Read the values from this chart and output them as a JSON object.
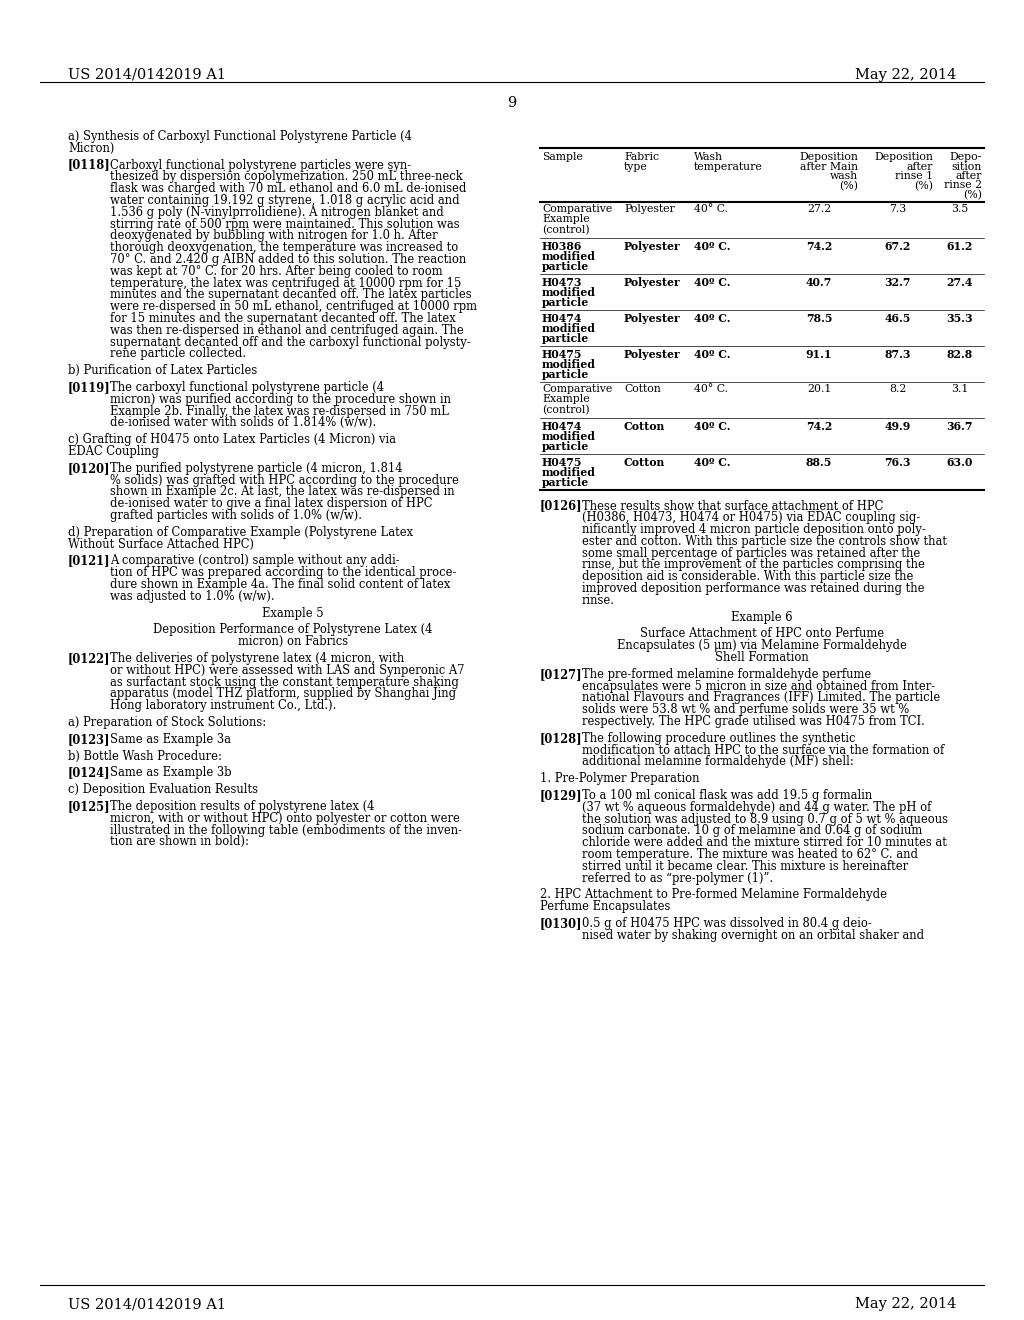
{
  "header_left": "US 2014/0142019 A1",
  "header_right": "May 22, 2014",
  "page_number": "9",
  "bg_color": "#ffffff",
  "left_column_text": [
    {
      "style": "normal",
      "text": "a) Synthesis of Carboxyl Functional Polystyrene Particle (4\nMicron)"
    },
    {
      "style": "paragraph",
      "tag": "[0118]",
      "text": "Carboxyl functional polystyrene particles were syn-\nthesized by dispersion copolymerization. 250 mL three-neck\nflask was charged with 70 mL ethanol and 6.0 mL de-ionised\nwater containing 19.192 g styrene, 1.018 g acrylic acid and\n1.536 g poly (N-vinylprrolidiene). A nitrogen blanket and\nstirring rate of 500 rpm were maintained. This solution was\ndeoxygenated by bubbling with nitrogen for 1.0 h. After\nthorough deoxygenation, the temperature was increased to\n70° C. and 2.420 g AIBN added to this solution. The reaction\nwas kept at 70° C. for 20 hrs. After being cooled to room\ntemperature, the latex was centrifuged at 10000 rpm for 15\nminutes and the supernatant decanted off. The latex particles\nwere re-dispersed in 50 mL ethanol, centrifuged at 10000 rpm\nfor 15 minutes and the supernatant decanted off. The latex\nwas then re-dispersed in ethanol and centrifuged again. The\nsupernatant decanted off and the carboxyl functional polysty-\nrene particle collected."
    },
    {
      "style": "normal",
      "text": "b) Purification of Latex Particles"
    },
    {
      "style": "paragraph",
      "tag": "[0119]",
      "text": "The carboxyl functional polystyrene particle (4\nmicron) was purified according to the procedure shown in\nExample 2b. Finally, the latex was re-dispersed in 750 mL\nde-ionised water with solids of 1.814% (w/w)."
    },
    {
      "style": "normal",
      "text": "c) Grafting of H0475 onto Latex Particles (4 Micron) via\nEDAC Coupling"
    },
    {
      "style": "paragraph",
      "tag": "[0120]",
      "text": "The purified polystyrene particle (4 micron, 1.814\n% solids) was grafted with HPC according to the procedure\nshown in Example 2c. At last, the latex was re-dispersed in\nde-ionised water to give a final latex dispersion of HPC\ngrafted particles with solids of 1.0% (w/w)."
    },
    {
      "style": "normal",
      "text": "d) Preparation of Comparative Example (Polystyrene Latex\nWithout Surface Attached HPC)"
    },
    {
      "style": "paragraph",
      "tag": "[0121]",
      "text": "A comparative (control) sample without any addi-\ntion of HPC was prepared according to the identical proce-\ndure shown in Example 4a. The final solid content of latex\nwas adjusted to 1.0% (w/w)."
    },
    {
      "style": "center",
      "text": "Example 5"
    },
    {
      "style": "center",
      "text": "Deposition Performance of Polystyrene Latex (4\nmicron) on Fabrics"
    },
    {
      "style": "paragraph",
      "tag": "[0122]",
      "text": "The deliveries of polystyrene latex (4 micron, with\nor without HPC) were assessed with LAS and Synperonic A7\nas surfactant stock using the constant temperature shaking\napparatus (model THZ platform, supplied by Shanghai Jing\nHong laboratory instrument Co., Ltd.)."
    },
    {
      "style": "normal",
      "text": "a) Preparation of Stock Solutions:"
    },
    {
      "style": "paragraph",
      "tag": "[0123]",
      "text": "Same as Example 3a"
    },
    {
      "style": "normal",
      "text": "b) Bottle Wash Procedure:"
    },
    {
      "style": "paragraph",
      "tag": "[0124]",
      "text": "Same as Example 3b"
    },
    {
      "style": "normal",
      "text": "c) Deposition Evaluation Results"
    },
    {
      "style": "paragraph",
      "tag": "[0125]",
      "text": "The deposition results of polystyrene latex (4\nmicron, with or without HPC) onto polyester or cotton were\nillustrated in the following table (embodiments of the inven-\ntion are shown in bold):"
    }
  ],
  "right_column_text": [
    {
      "style": "paragraph",
      "tag": "[0126]",
      "text": "These results show that surface attachment of HPC\n(H0386, H0473, H0474 or H0475) via EDAC coupling sig-\nnificantly improved 4 micron particle deposition onto poly-\nester and cotton. With this particle size the controls show that\nsome small percentage of particles was retained after the\nrinse, but the improvement of the particles comprising the\ndeposition aid is considerable. With this particle size the\nimproved deposition performance was retained during the\nrinse."
    },
    {
      "style": "center",
      "text": "Example 6"
    },
    {
      "style": "center",
      "text": "Surface Attachment of HPC onto Perfume\nEncapsulates (5 μm) via Melamine Formaldehyde\nShell Formation"
    },
    {
      "style": "paragraph",
      "tag": "[0127]",
      "text": "The pre-formed melamine formaldehyde perfume\nencapsulates were 5 micron in size and obtained from Inter-\nnational Flavours and Fragrances (IFF) Limited. The particle\nsolids were 53.8 wt % and perfume solids were 35 wt %\nrespectively. The HPC grade utilised was H0475 from TCI."
    },
    {
      "style": "paragraph",
      "tag": "[0128]",
      "text": "The following procedure outlines the synthetic\nmodification to attach HPC to the surface via the formation of\nadditional melamine formaldehyde (MF) shell:"
    },
    {
      "style": "normal",
      "text": "1. Pre-Polymer Preparation"
    },
    {
      "style": "paragraph",
      "tag": "[0129]",
      "text": "To a 100 ml conical flask was add 19.5 g formalin\n(37 wt % aqueous formaldehyde) and 44 g water. The pH of\nthe solution was adjusted to 8.9 using 0.7 g of 5 wt % aqueous\nsodium carbonate. 10 g of melamine and 0.64 g of sodium\nchloride were added and the mixture stirred for 10 minutes at\nroom temperature. The mixture was heated to 62° C. and\nstirred until it became clear. This mixture is hereinafter\nreferred to as “pre-polymer (1)”."
    },
    {
      "style": "normal",
      "text": "2. HPC Attachment to Pre-formed Melamine Formaldehyde\nPerfume Encapsulates"
    },
    {
      "style": "paragraph",
      "tag": "[0130]",
      "text": "0.5 g of H0475 HPC was dissolved in 80.4 g deio-\nnised water by shaking overnight on an orbital shaker and"
    }
  ],
  "table": {
    "header_texts": [
      [
        "Sample"
      ],
      [
        "Fabric",
        "type"
      ],
      [
        "Wash",
        "temperature"
      ],
      [
        "Deposition",
        "after Main",
        "wash",
        "(%)"
      ],
      [
        "Deposition",
        "after",
        "rinse 1",
        "(%)"
      ],
      [
        "Depo-",
        "sition",
        "after",
        "rinse 2",
        "(%)"
      ]
    ],
    "rows": [
      {
        "sample": [
          "Comparative",
          "Example",
          "(control)"
        ],
        "fabric": "Polyester",
        "temp": "40° C.",
        "d1": "27.2",
        "d2": "7.3",
        "d3": "3.5",
        "bold": false
      },
      {
        "sample": [
          "H0386",
          "modified",
          "particle"
        ],
        "fabric": "Polyester",
        "temp": "40º C.",
        "d1": "74.2",
        "d2": "67.2",
        "d3": "61.2",
        "bold": true
      },
      {
        "sample": [
          "H0473",
          "modified",
          "particle"
        ],
        "fabric": "Polyester",
        "temp": "40º C.",
        "d1": "40.7",
        "d2": "32.7",
        "d3": "27.4",
        "bold": true
      },
      {
        "sample": [
          "H0474",
          "modified",
          "particle"
        ],
        "fabric": "Polyester",
        "temp": "40º C.",
        "d1": "78.5",
        "d2": "46.5",
        "d3": "35.3",
        "bold": true
      },
      {
        "sample": [
          "H0475",
          "modified",
          "particle"
        ],
        "fabric": "Polyester",
        "temp": "40º C.",
        "d1": "91.1",
        "d2": "87.3",
        "d3": "82.8",
        "bold": true
      },
      {
        "sample": [
          "Comparative",
          "Example",
          "(control)"
        ],
        "fabric": "Cotton",
        "temp": "40° C.",
        "d1": "20.1",
        "d2": "8.2",
        "d3": "3.1",
        "bold": false
      },
      {
        "sample": [
          "H0474",
          "modified",
          "particle"
        ],
        "fabric": "Cotton",
        "temp": "40º C.",
        "d1": "74.2",
        "d2": "49.9",
        "d3": "36.7",
        "bold": true
      },
      {
        "sample": [
          "H0475",
          "modified",
          "particle"
        ],
        "fabric": "Cotton",
        "temp": "40º C.",
        "d1": "88.5",
        "d2": "76.3",
        "d3": "63.0",
        "bold": true
      }
    ]
  }
}
